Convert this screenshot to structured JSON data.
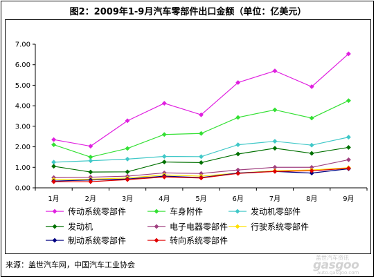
{
  "chart_data": {
    "type": "line",
    "title": "图2：2009年1-9月汽车零部件出口金额（单位：亿美元）",
    "xlabel": "",
    "ylabel": "",
    "categories": [
      "1月",
      "2月",
      "3月",
      "4月",
      "5月",
      "6月",
      "7月",
      "8月",
      "9月"
    ],
    "ylim": [
      0,
      7
    ],
    "yticks": [
      "0.00",
      "1.00",
      "2.00",
      "3.00",
      "4.00",
      "5.00",
      "6.00",
      "7.00"
    ],
    "grid": false,
    "legend_position": "bottom",
    "series": [
      {
        "name": "传动系统零部件",
        "color": "#e020e0",
        "values": [
          2.35,
          2.03,
          3.27,
          4.12,
          3.56,
          5.13,
          5.7,
          4.93,
          6.53
        ]
      },
      {
        "name": "车身附件",
        "color": "#33e033",
        "values": [
          2.1,
          1.5,
          1.92,
          2.6,
          2.65,
          3.43,
          3.8,
          3.4,
          4.25
        ]
      },
      {
        "name": "发动机零部件",
        "color": "#40c8c8",
        "values": [
          1.25,
          1.32,
          1.4,
          1.53,
          1.52,
          2.1,
          2.27,
          2.08,
          2.47
        ]
      },
      {
        "name": "发动机",
        "color": "#007000",
        "values": [
          1.05,
          0.77,
          0.78,
          1.26,
          1.23,
          1.65,
          1.93,
          1.68,
          1.97
        ]
      },
      {
        "name": "电子电器零部件",
        "color": "#a04080",
        "values": [
          0.5,
          0.52,
          0.57,
          0.73,
          0.7,
          0.87,
          1.0,
          1.0,
          1.37
        ]
      },
      {
        "name": "行驶系统零部件",
        "color": "#ffe000",
        "values": [
          0.4,
          0.42,
          0.48,
          0.63,
          0.57,
          0.72,
          0.83,
          0.87,
          0.98
        ]
      },
      {
        "name": "制动系统零部件",
        "color": "#000080",
        "values": [
          0.33,
          0.38,
          0.43,
          0.57,
          0.5,
          0.72,
          0.8,
          0.72,
          0.93
        ]
      },
      {
        "name": "转向系统零部件",
        "color": "#e00000",
        "values": [
          0.3,
          0.3,
          0.4,
          0.53,
          0.48,
          0.7,
          0.8,
          0.83,
          0.95
        ]
      }
    ]
  },
  "source": "来源：盖世汽车网，中国汽车工业协会",
  "watermark": {
    "line1": "盖世汽车资讯",
    "line2": "gasgoo",
    "line3": "auto.gasgoo.com"
  }
}
